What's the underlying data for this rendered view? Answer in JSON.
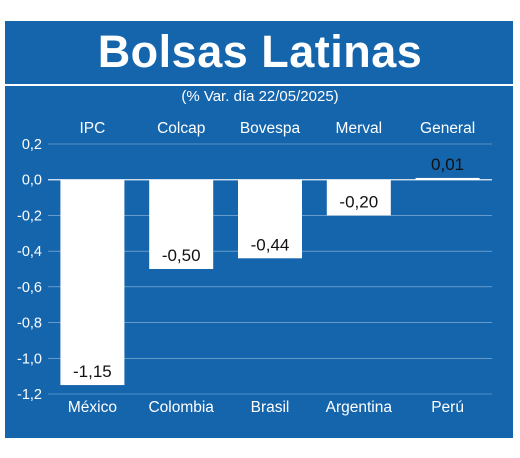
{
  "header": {
    "title": "Bolsas Latinas",
    "subtitle": "(% Var. día 22/05/2025)"
  },
  "colors": {
    "background": "#1565ad",
    "bar": "#ffffff",
    "text": "#ffffff",
    "value_text": "#111111"
  },
  "chart_data": {
    "type": "bar",
    "title": "Bolsas Latinas",
    "subtitle": "(% Var. día 22/05/2025)",
    "categories": [
      "México",
      "Colombia",
      "Brasil",
      "Argentina",
      "Perú"
    ],
    "index_names": [
      "IPC",
      "Colcap",
      "Bovespa",
      "Merval",
      "General"
    ],
    "values": [
      -1.15,
      -0.5,
      -0.44,
      -0.2,
      0.01
    ],
    "value_labels": [
      "-1,15",
      "-0,50",
      "-0,44",
      "-0,20",
      "0,01"
    ],
    "yticks": [
      "0,2",
      "0,0",
      "-0,2",
      "-0,4",
      "-0,6",
      "-0,8",
      "-1,0",
      "-1,2"
    ],
    "ylim": [
      -1.2,
      0.2
    ],
    "grid": true,
    "xlabel": "",
    "ylabel": ""
  }
}
